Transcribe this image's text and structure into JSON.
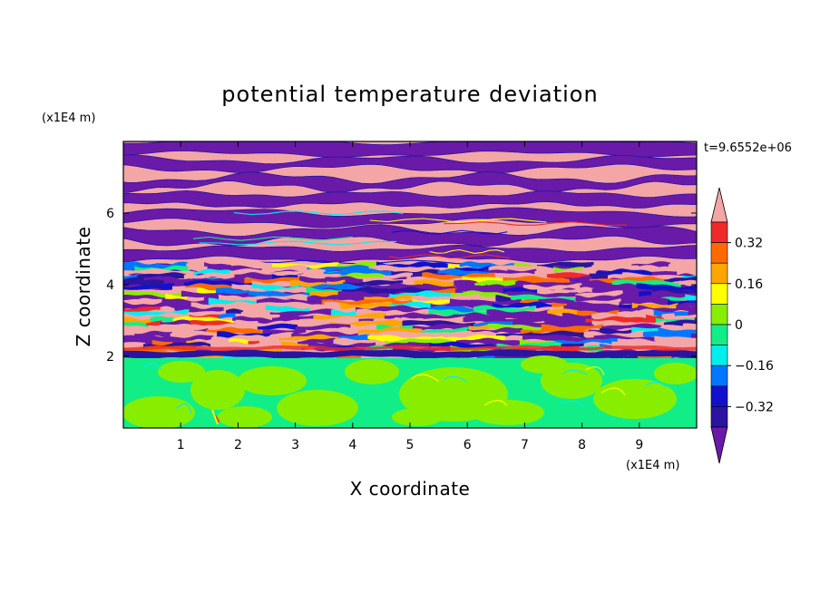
{
  "chart_data": {
    "type": "heatmap",
    "title": "potential temperature deviation",
    "xlabel": "X coordinate",
    "ylabel": "Z coordinate",
    "x_unit": "(x1E4 m)",
    "y_unit": "(x1E4 m)",
    "time_label": "t=9.6552e+06",
    "xlim": [
      0,
      10
    ],
    "ylim": [
      0,
      8
    ],
    "x_ticks": [
      1,
      2,
      3,
      4,
      5,
      6,
      7,
      8,
      9
    ],
    "y_ticks": [
      2,
      4,
      6
    ],
    "colorbar": {
      "ticks": [
        {
          "value": 0.32,
          "label": "0.32"
        },
        {
          "value": 0.16,
          "label": "0.16"
        },
        {
          "value": 0,
          "label": "0"
        },
        {
          "value": -0.16,
          "label": "−0.16"
        },
        {
          "value": -0.32,
          "label": "−0.32"
        }
      ],
      "levels": [
        {
          "range": "> 0.40",
          "color": "#f4a6a6"
        },
        {
          "range": "0.32 to 0.40",
          "color": "#ee2a2a"
        },
        {
          "range": "0.24 to 0.32",
          "color": "#ff6a00"
        },
        {
          "range": "0.16 to 0.24",
          "color": "#ffa500"
        },
        {
          "range": "0.08 to 0.16",
          "color": "#ffff00"
        },
        {
          "range": "0 to 0.08",
          "color": "#88ee00"
        },
        {
          "range": "-0.08 to 0",
          "color": "#11ee88"
        },
        {
          "range": "-0.16 to -0.08",
          "color": "#00eeee"
        },
        {
          "range": "-0.24 to -0.16",
          "color": "#0077ff"
        },
        {
          "range": "-0.32 to -0.24",
          "color": "#1111cc"
        },
        {
          "range": "-0.40 to -0.32",
          "color": "#2a14a0"
        },
        {
          "range": "< -0.40",
          "color": "#6a1aa8"
        }
      ]
    },
    "regions": [
      {
        "z_range": [
          0,
          1.95
        ],
        "description": "mixed layer, values near 0 (green / lime)"
      },
      {
        "z_range": [
          1.95,
          4.6
        ],
        "description": "turbulent layered band with full range of values"
      },
      {
        "z_range": [
          4.6,
          8
        ],
        "description": "alternating strong positive (pink) and strong negative (purple) horizontal layers"
      }
    ]
  }
}
